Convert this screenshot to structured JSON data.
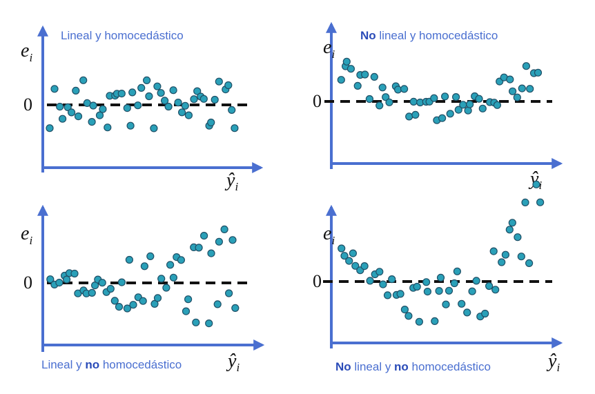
{
  "panels": [
    {
      "title": [
        {
          "text": "Lineal y homocedástico",
          "bold": false
        }
      ],
      "y_label": "e",
      "y_label_sub": "i",
      "zero": "0",
      "x_label": "ŷ",
      "x_label_sub": "i"
    },
    {
      "title": [
        {
          "text": "No",
          "bold": true
        },
        {
          "text": " lineal y homocedástico",
          "bold": false
        }
      ],
      "y_label": "e",
      "y_label_sub": "i",
      "zero": "0",
      "x_label": "ŷ",
      "x_label_sub": "i"
    },
    {
      "title": [
        {
          "text": "Lineal y ",
          "bold": false
        },
        {
          "text": "no",
          "bold": true
        },
        {
          "text": " homocedástico",
          "bold": false
        }
      ],
      "y_label": "e",
      "y_label_sub": "i",
      "zero": "0",
      "x_label": "ŷ",
      "x_label_sub": "i"
    },
    {
      "title": [
        {
          "text": "No",
          "bold": true
        },
        {
          "text": " lineal y ",
          "bold": false
        },
        {
          "text": "no",
          "bold": true
        },
        {
          "text": " homocedástico",
          "bold": false
        }
      ],
      "y_label": "e",
      "y_label_sub": "i",
      "zero": "0",
      "x_label": "ŷ",
      "x_label_sub": "i"
    }
  ]
}
